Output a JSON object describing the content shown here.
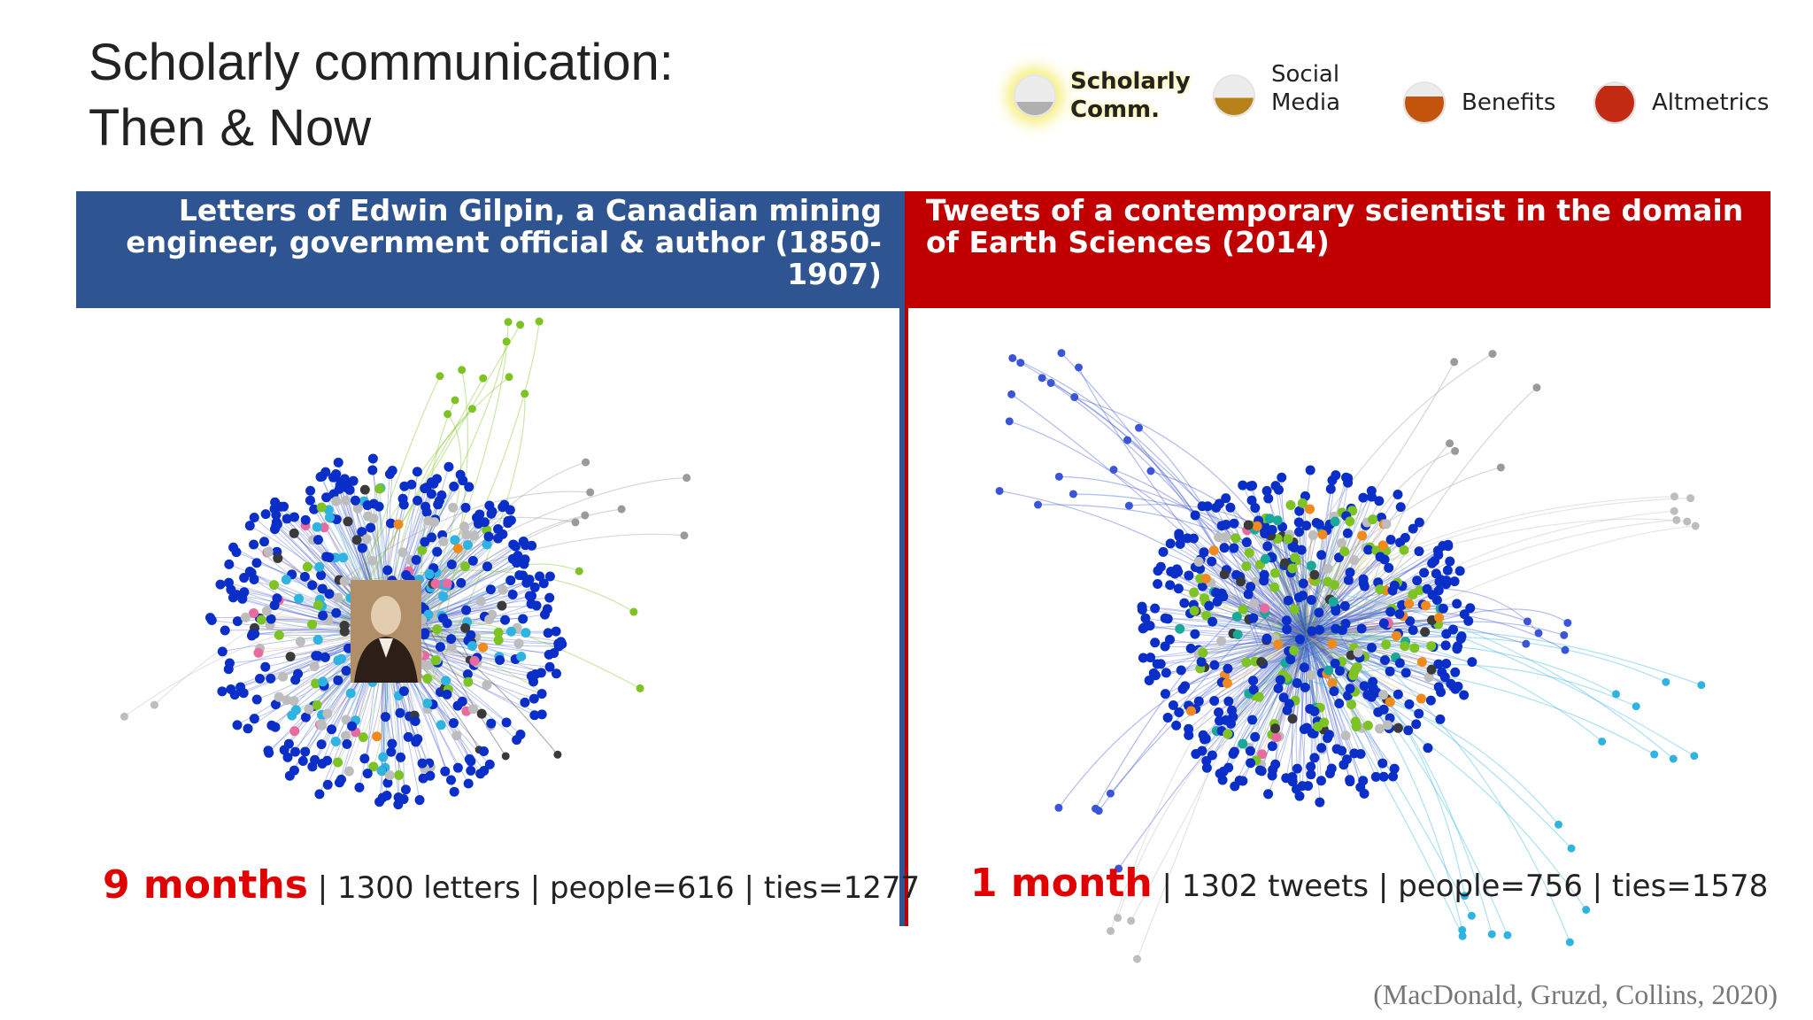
{
  "title": {
    "line1": "Scholarly communication:",
    "line2": "Then & Now"
  },
  "legend": [
    {
      "label": "Scholarly\nComm.",
      "fill": 0.35,
      "color": "#b0b0b0",
      "glow": true
    },
    {
      "label": "Social\nMedia",
      "fill": 0.45,
      "color": "#b8821a",
      "glow": false
    },
    {
      "label": "Benefits",
      "fill": 0.65,
      "color": "#c4540c",
      "glow": false
    },
    {
      "label": "Altmetrics",
      "fill": 0.9,
      "color": "#c22a12",
      "glow": false
    }
  ],
  "left_panel": {
    "heading": "Letters of Edwin Gilpin, a Canadian mining engineer, government official & author (1850-1907)",
    "stats_big": "9 months",
    "stats_rest": " | 1300 letters | people=616 | ties=1277"
  },
  "right_panel": {
    "heading": "Tweets of a contemporary scientist in the domain of Earth Sciences (2014)",
    "stats_big": "1 month",
    "stats_rest": " | 1302 tweets | people=756 | ties=1578"
  },
  "citation": "(MacDonald, Gruzd, Collins, 2020)",
  "colors": {
    "blue": "#0a2ec8",
    "gray": "#bdbdbd",
    "cyan": "#2fb3e0",
    "green": "#7ec324",
    "dark": "#3a3a3a",
    "pink": "#e86a9e",
    "orange": "#f08a1c",
    "teal": "#1aa89a"
  }
}
